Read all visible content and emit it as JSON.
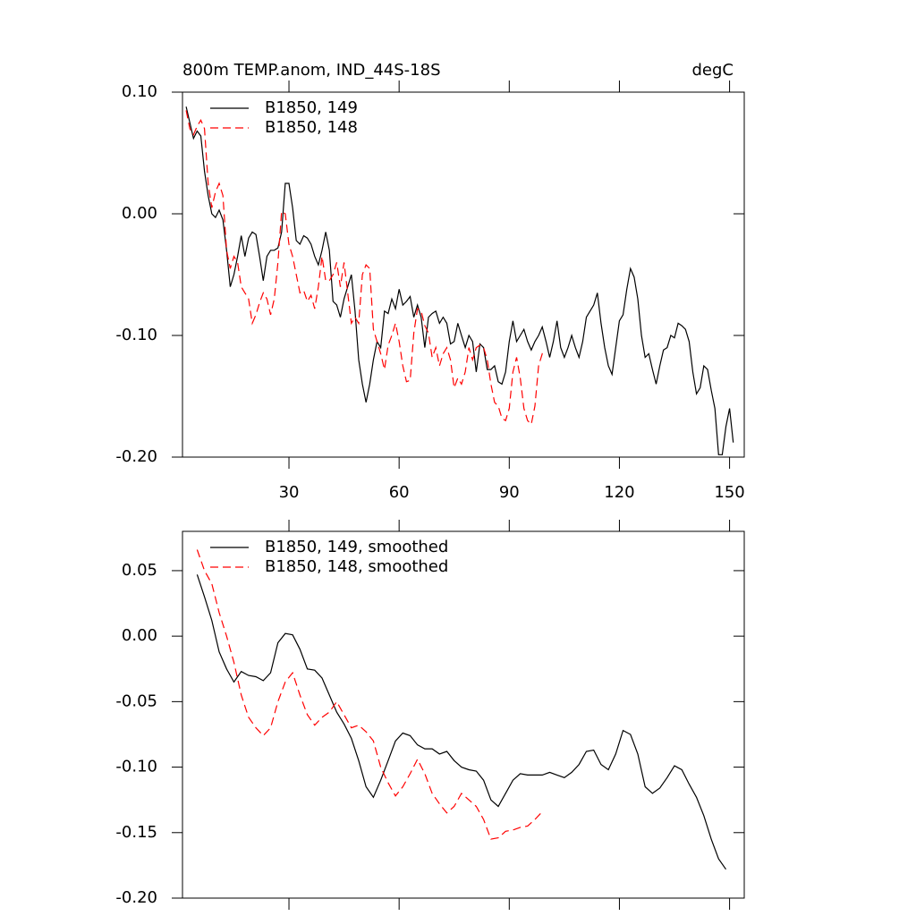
{
  "chart_data": [
    {
      "type": "line",
      "title": "800m TEMP.anom, IND_44S-18S",
      "subtitle": "degC",
      "x": [
        2,
        3,
        4,
        5,
        6,
        7,
        8,
        9,
        10,
        11,
        12,
        13,
        14,
        15,
        16,
        17,
        18,
        19,
        20,
        21,
        22,
        23,
        24,
        25,
        26,
        27,
        28,
        29,
        30,
        31,
        32,
        33,
        34,
        35,
        36,
        37,
        38,
        39,
        40,
        41,
        42,
        43,
        44,
        45,
        46,
        47,
        48,
        49,
        50,
        51,
        52,
        53,
        54,
        55,
        56,
        57,
        58,
        59,
        60,
        61,
        62,
        63,
        64,
        65,
        66,
        67,
        68,
        69,
        70,
        71,
        72,
        73,
        74,
        75,
        76,
        77,
        78,
        79,
        80,
        81,
        82,
        83,
        84,
        85,
        86,
        87,
        88,
        89,
        90,
        91,
        92,
        93,
        94,
        95,
        96,
        97,
        98,
        99,
        100,
        101,
        102,
        103,
        104,
        105,
        106,
        107,
        108,
        109,
        110,
        111,
        112,
        113,
        114,
        115,
        116,
        117,
        118,
        119,
        120,
        121,
        122,
        123,
        124,
        125,
        126,
        127,
        128,
        129,
        130,
        131,
        132,
        133,
        134,
        135,
        136,
        137,
        138,
        139,
        140,
        141,
        142,
        143,
        144,
        145,
        146,
        147,
        148,
        149,
        150,
        151
      ],
      "series": [
        {
          "name": "B1850, 149",
          "color": "#000000",
          "dash": false,
          "values": [
            0.088,
            0.075,
            0.062,
            0.068,
            0.064,
            0.035,
            0.015,
            0.0,
            -0.003,
            0.003,
            -0.005,
            -0.03,
            -0.06,
            -0.05,
            -0.035,
            -0.018,
            -0.035,
            -0.02,
            -0.015,
            -0.017,
            -0.035,
            -0.055,
            -0.035,
            -0.03,
            -0.03,
            -0.028,
            -0.015,
            0.025,
            0.025,
            0.005,
            -0.022,
            -0.025,
            -0.018,
            -0.02,
            -0.025,
            -0.035,
            -0.042,
            -0.03,
            -0.015,
            -0.03,
            -0.072,
            -0.075,
            -0.085,
            -0.07,
            -0.06,
            -0.05,
            -0.08,
            -0.12,
            -0.14,
            -0.155,
            -0.14,
            -0.12,
            -0.105,
            -0.11,
            -0.08,
            -0.082,
            -0.07,
            -0.078,
            -0.062,
            -0.075,
            -0.072,
            -0.068,
            -0.085,
            -0.075,
            -0.085,
            -0.11,
            -0.085,
            -0.082,
            -0.08,
            -0.09,
            -0.085,
            -0.09,
            -0.107,
            -0.105,
            -0.09,
            -0.1,
            -0.11,
            -0.1,
            -0.105,
            -0.13,
            -0.107,
            -0.11,
            -0.128,
            -0.128,
            -0.125,
            -0.138,
            -0.14,
            -0.13,
            -0.105,
            -0.088,
            -0.105,
            -0.1,
            -0.095,
            -0.105,
            -0.112,
            -0.105,
            -0.1,
            -0.093,
            -0.105,
            -0.118,
            -0.105,
            -0.088,
            -0.11,
            -0.118,
            -0.11,
            -0.1,
            -0.11,
            -0.118,
            -0.105,
            -0.085,
            -0.08,
            -0.075,
            -0.065,
            -0.09,
            -0.11,
            -0.125,
            -0.132,
            -0.11,
            -0.088,
            -0.083,
            -0.062,
            -0.045,
            -0.052,
            -0.07,
            -0.1,
            -0.118,
            -0.115,
            -0.128,
            -0.14,
            -0.125,
            -0.112,
            -0.11,
            -0.1,
            -0.102,
            -0.09,
            -0.092,
            -0.095,
            -0.105,
            -0.13,
            -0.148,
            -0.143,
            -0.125,
            -0.128,
            -0.145,
            -0.16,
            -0.198,
            -0.198,
            -0.175,
            -0.16,
            -0.188
          ]
        },
        {
          "name": "B1850, 148",
          "color": "#ff0000",
          "dash": true,
          "values": [
            0.085,
            0.07,
            0.065,
            0.072,
            0.077,
            0.07,
            0.025,
            0.005,
            0.018,
            0.025,
            0.015,
            -0.03,
            -0.045,
            -0.035,
            -0.04,
            -0.06,
            -0.065,
            -0.07,
            -0.09,
            -0.083,
            -0.073,
            -0.065,
            -0.07,
            -0.083,
            -0.07,
            -0.04,
            0.002,
            0.0,
            -0.025,
            -0.035,
            -0.05,
            -0.065,
            -0.063,
            -0.072,
            -0.067,
            -0.078,
            -0.06,
            -0.035,
            -0.055,
            -0.055,
            -0.05,
            -0.04,
            -0.06,
            -0.04,
            -0.065,
            -0.09,
            -0.085,
            -0.09,
            -0.05,
            -0.042,
            -0.045,
            -0.095,
            -0.105,
            -0.115,
            -0.128,
            -0.108,
            -0.1,
            -0.09,
            -0.105,
            -0.125,
            -0.138,
            -0.137,
            -0.098,
            -0.078,
            -0.08,
            -0.092,
            -0.098,
            -0.118,
            -0.11,
            -0.125,
            -0.115,
            -0.11,
            -0.12,
            -0.143,
            -0.135,
            -0.14,
            -0.13,
            -0.11,
            -0.12,
            -0.11,
            -0.108,
            -0.11,
            -0.12,
            -0.14,
            -0.155,
            -0.158,
            -0.168,
            -0.17,
            -0.16,
            -0.13,
            -0.118,
            -0.135,
            -0.16,
            -0.17,
            -0.173,
            -0.158,
            -0.125,
            -0.115,
            -0.117,
            null,
            null,
            null,
            null,
            null,
            null,
            null,
            null,
            null,
            null,
            null,
            null,
            null,
            null,
            null,
            null,
            null,
            null,
            null,
            null,
            null,
            null,
            null,
            null,
            null,
            null,
            null,
            null,
            null,
            null,
            null,
            null,
            null,
            null,
            null,
            null,
            null,
            null,
            null,
            null,
            null,
            null,
            null,
            null,
            null,
            null,
            null,
            null,
            null,
            null,
            null
          ]
        }
      ],
      "xlim": [
        1,
        154
      ],
      "xticks": [
        30,
        60,
        90,
        120,
        150
      ],
      "ylim": [
        -0.2,
        0.1
      ],
      "yticks": [
        {
          "value": 0.1,
          "label": "0.10"
        },
        {
          "value": 0.0,
          "label": "0.00"
        },
        {
          "value": -0.1,
          "label": "-0.10"
        },
        {
          "value": -0.2,
          "label": "-0.20"
        }
      ]
    },
    {
      "type": "line",
      "x": [
        5,
        7,
        9,
        11,
        13,
        15,
        17,
        19,
        21,
        23,
        25,
        27,
        29,
        31,
        33,
        35,
        37,
        39,
        41,
        43,
        45,
        47,
        49,
        51,
        53,
        55,
        57,
        59,
        61,
        63,
        65,
        67,
        69,
        71,
        73,
        75,
        77,
        79,
        81,
        83,
        85,
        87,
        89,
        91,
        93,
        95,
        97,
        99,
        101,
        103,
        105,
        107,
        109,
        111,
        113,
        115,
        117,
        119,
        121,
        123,
        125,
        127,
        129,
        131,
        133,
        135,
        137,
        139,
        141,
        143,
        145,
        147,
        149
      ],
      "series": [
        {
          "name": "B1850, 149, smoothed",
          "color": "#000000",
          "dash": false,
          "values": [
            0.047,
            0.03,
            0.012,
            -0.012,
            -0.025,
            -0.035,
            -0.027,
            -0.03,
            -0.031,
            -0.034,
            -0.028,
            -0.005,
            0.002,
            0.001,
            -0.01,
            -0.025,
            -0.026,
            -0.032,
            -0.045,
            -0.058,
            -0.067,
            -0.078,
            -0.095,
            -0.115,
            -0.123,
            -0.11,
            -0.095,
            -0.08,
            -0.074,
            -0.076,
            -0.083,
            -0.086,
            -0.086,
            -0.09,
            -0.088,
            -0.095,
            -0.1,
            -0.102,
            -0.103,
            -0.11,
            -0.125,
            -0.13,
            -0.12,
            -0.11,
            -0.105,
            -0.106,
            -0.106,
            -0.106,
            -0.104,
            -0.106,
            -0.108,
            -0.104,
            -0.098,
            -0.088,
            -0.087,
            -0.098,
            -0.102,
            -0.09,
            -0.072,
            -0.075,
            -0.09,
            -0.115,
            -0.12,
            -0.116,
            -0.108,
            -0.099,
            -0.102,
            -0.113,
            -0.123,
            -0.137,
            -0.155,
            -0.17,
            -0.178
          ]
        },
        {
          "name": "B1850, 148, smoothed",
          "color": "#ff0000",
          "dash": true,
          "values": [
            0.066,
            0.05,
            0.04,
            0.018,
            0.0,
            -0.02,
            -0.045,
            -0.062,
            -0.07,
            -0.076,
            -0.07,
            -0.05,
            -0.035,
            -0.028,
            -0.045,
            -0.06,
            -0.068,
            -0.062,
            -0.058,
            -0.05,
            -0.06,
            -0.07,
            -0.068,
            -0.073,
            -0.08,
            -0.1,
            -0.112,
            -0.122,
            -0.115,
            -0.105,
            -0.094,
            -0.105,
            -0.12,
            -0.128,
            -0.135,
            -0.13,
            -0.12,
            -0.125,
            -0.13,
            -0.14,
            -0.155,
            -0.154,
            -0.149,
            -0.148,
            -0.146,
            -0.145,
            -0.14,
            -0.134,
            null,
            null,
            null,
            null,
            null,
            null,
            null,
            null,
            null,
            null,
            null,
            null,
            null,
            null,
            null,
            null,
            null,
            null,
            null,
            null,
            null,
            null,
            null,
            null,
            null
          ]
        }
      ],
      "xlim": [
        1,
        154
      ],
      "xticks": [
        30,
        60,
        90,
        120,
        150
      ],
      "ylim": [
        -0.2,
        0.08
      ],
      "yticks": [
        {
          "value": 0.05,
          "label": "0.05"
        },
        {
          "value": 0.0,
          "label": "0.00"
        },
        {
          "value": -0.05,
          "label": "-0.05"
        },
        {
          "value": -0.1,
          "label": "-0.10"
        },
        {
          "value": -0.15,
          "label": "-0.15"
        },
        {
          "value": -0.2,
          "label": "-0.20"
        }
      ]
    }
  ]
}
